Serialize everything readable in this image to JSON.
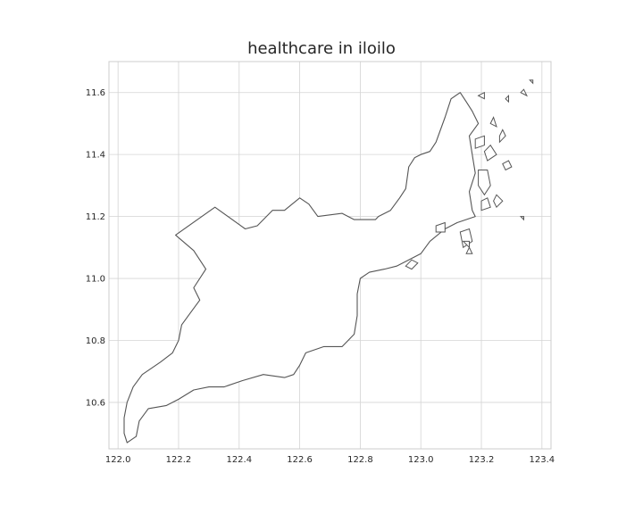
{
  "title": "healthcare in iloilo",
  "chart_data": {
    "type": "map",
    "title": "healthcare in iloilo",
    "xlabel": "",
    "ylabel": "",
    "xlim": [
      121.97,
      123.43
    ],
    "ylim": [
      10.45,
      11.7
    ],
    "x_ticks": [
      122.0,
      122.2,
      122.4,
      122.6,
      122.8,
      123.0,
      123.2,
      123.4
    ],
    "x_tick_labels": [
      "122.0",
      "122.2",
      "122.4",
      "122.6",
      "122.8",
      "123.0",
      "123.2",
      "123.4"
    ],
    "y_ticks": [
      10.6,
      10.8,
      11.0,
      11.2,
      11.4,
      11.6
    ],
    "y_tick_labels": [
      "10.6",
      "10.8",
      "11.0",
      "11.2",
      "11.4",
      "11.6"
    ],
    "grid": true,
    "outline_color": "#555555",
    "fill_color": "#ffffff",
    "main_outline_lonlat": [
      [
        122.03,
        10.47
      ],
      [
        122.02,
        10.5
      ],
      [
        122.02,
        10.55
      ],
      [
        122.03,
        10.6
      ],
      [
        122.05,
        10.65
      ],
      [
        122.08,
        10.69
      ],
      [
        122.14,
        10.73
      ],
      [
        122.18,
        10.76
      ],
      [
        122.2,
        10.8
      ],
      [
        122.21,
        10.85
      ],
      [
        122.24,
        10.89
      ],
      [
        122.27,
        10.93
      ],
      [
        122.25,
        10.97
      ],
      [
        122.29,
        11.03
      ],
      [
        122.25,
        11.09
      ],
      [
        122.19,
        11.14
      ],
      [
        122.32,
        11.23
      ],
      [
        122.42,
        11.16
      ],
      [
        122.46,
        11.17
      ],
      [
        122.51,
        11.22
      ],
      [
        122.55,
        11.22
      ],
      [
        122.6,
        11.26
      ],
      [
        122.63,
        11.24
      ],
      [
        122.66,
        11.2
      ],
      [
        122.74,
        11.21
      ],
      [
        122.78,
        11.19
      ],
      [
        122.85,
        11.19
      ],
      [
        122.86,
        11.2
      ],
      [
        122.9,
        11.22
      ],
      [
        122.93,
        11.26
      ],
      [
        122.95,
        11.29
      ],
      [
        122.96,
        11.36
      ],
      [
        122.98,
        11.39
      ],
      [
        123.0,
        11.4
      ],
      [
        123.03,
        11.41
      ],
      [
        123.05,
        11.44
      ],
      [
        123.08,
        11.52
      ],
      [
        123.1,
        11.58
      ],
      [
        123.13,
        11.6
      ],
      [
        123.15,
        11.57
      ],
      [
        123.17,
        11.54
      ],
      [
        123.19,
        11.5
      ],
      [
        123.16,
        11.46
      ],
      [
        123.17,
        11.4
      ],
      [
        123.18,
        11.34
      ],
      [
        123.16,
        11.28
      ],
      [
        123.17,
        11.22
      ],
      [
        123.18,
        11.2
      ],
      [
        123.12,
        11.18
      ],
      [
        123.08,
        11.16
      ],
      [
        123.03,
        11.12
      ],
      [
        123.0,
        11.08
      ],
      [
        122.96,
        11.06
      ],
      [
        122.92,
        11.04
      ],
      [
        122.88,
        11.03
      ],
      [
        122.83,
        11.02
      ],
      [
        122.8,
        11.0
      ],
      [
        122.79,
        10.95
      ],
      [
        122.79,
        10.88
      ],
      [
        122.78,
        10.82
      ],
      [
        122.74,
        10.78
      ],
      [
        122.68,
        10.78
      ],
      [
        122.62,
        10.76
      ],
      [
        122.6,
        10.72
      ],
      [
        122.58,
        10.69
      ],
      [
        122.55,
        10.68
      ],
      [
        122.48,
        10.69
      ],
      [
        122.41,
        10.67
      ],
      [
        122.35,
        10.65
      ],
      [
        122.3,
        10.65
      ],
      [
        122.25,
        10.64
      ],
      [
        122.2,
        10.61
      ],
      [
        122.16,
        10.59
      ],
      [
        122.1,
        10.58
      ],
      [
        122.07,
        10.54
      ],
      [
        122.06,
        10.49
      ],
      [
        122.03,
        10.47
      ]
    ],
    "islands_lonlat": [
      [
        [
          123.18,
          11.45
        ],
        [
          123.21,
          11.46
        ],
        [
          123.21,
          11.43
        ],
        [
          123.18,
          11.42
        ],
        [
          123.18,
          11.45
        ]
      ],
      [
        [
          123.19,
          11.35
        ],
        [
          123.22,
          11.35
        ],
        [
          123.23,
          11.3
        ],
        [
          123.21,
          11.27
        ],
        [
          123.19,
          11.3
        ],
        [
          123.19,
          11.35
        ]
      ],
      [
        [
          123.2,
          11.25
        ],
        [
          123.22,
          11.26
        ],
        [
          123.23,
          11.23
        ],
        [
          123.2,
          11.22
        ],
        [
          123.2,
          11.25
        ]
      ],
      [
        [
          123.13,
          11.15
        ],
        [
          123.16,
          11.16
        ],
        [
          123.17,
          11.12
        ],
        [
          123.14,
          11.1
        ],
        [
          123.13,
          11.15
        ]
      ],
      [
        [
          123.05,
          11.17
        ],
        [
          123.08,
          11.18
        ],
        [
          123.08,
          11.15
        ],
        [
          123.05,
          11.15
        ],
        [
          123.05,
          11.17
        ]
      ],
      [
        [
          122.95,
          11.04
        ],
        [
          122.97,
          11.06
        ],
        [
          122.99,
          11.05
        ],
        [
          122.97,
          11.03
        ],
        [
          122.95,
          11.04
        ]
      ],
      [
        [
          123.21,
          11.41
        ],
        [
          123.23,
          11.43
        ],
        [
          123.25,
          11.4
        ],
        [
          123.22,
          11.38
        ],
        [
          123.21,
          11.41
        ]
      ],
      [
        [
          123.26,
          11.46
        ],
        [
          123.27,
          11.48
        ],
        [
          123.28,
          11.46
        ],
        [
          123.26,
          11.44
        ],
        [
          123.26,
          11.46
        ]
      ],
      [
        [
          123.27,
          11.37
        ],
        [
          123.29,
          11.38
        ],
        [
          123.3,
          11.36
        ],
        [
          123.28,
          11.35
        ],
        [
          123.27,
          11.37
        ]
      ],
      [
        [
          123.24,
          11.25
        ],
        [
          123.25,
          11.27
        ],
        [
          123.27,
          11.25
        ],
        [
          123.25,
          11.23
        ],
        [
          123.24,
          11.25
        ]
      ],
      [
        [
          123.19,
          11.59
        ],
        [
          123.21,
          11.6
        ],
        [
          123.21,
          11.58
        ],
        [
          123.19,
          11.59
        ]
      ],
      [
        [
          123.28,
          11.58
        ],
        [
          123.29,
          11.59
        ],
        [
          123.29,
          11.57
        ],
        [
          123.28,
          11.58
        ]
      ],
      [
        [
          123.33,
          11.6
        ],
        [
          123.34,
          11.61
        ],
        [
          123.35,
          11.59
        ],
        [
          123.33,
          11.6
        ]
      ],
      [
        [
          123.23,
          11.5
        ],
        [
          123.24,
          11.52
        ],
        [
          123.25,
          11.49
        ],
        [
          123.23,
          11.5
        ]
      ],
      [
        [
          123.14,
          11.12
        ],
        [
          123.16,
          11.12
        ],
        [
          123.16,
          11.1
        ],
        [
          123.14,
          11.12
        ]
      ],
      [
        [
          123.15,
          11.08
        ],
        [
          123.16,
          11.1
        ],
        [
          123.17,
          11.08
        ],
        [
          123.15,
          11.08
        ]
      ],
      [
        [
          123.33,
          11.2
        ],
        [
          123.34,
          11.2
        ],
        [
          123.34,
          11.19
        ],
        [
          123.33,
          11.2
        ]
      ],
      [
        [
          123.36,
          11.64
        ],
        [
          123.37,
          11.64
        ],
        [
          123.37,
          11.63
        ],
        [
          123.36,
          11.64
        ]
      ]
    ]
  }
}
